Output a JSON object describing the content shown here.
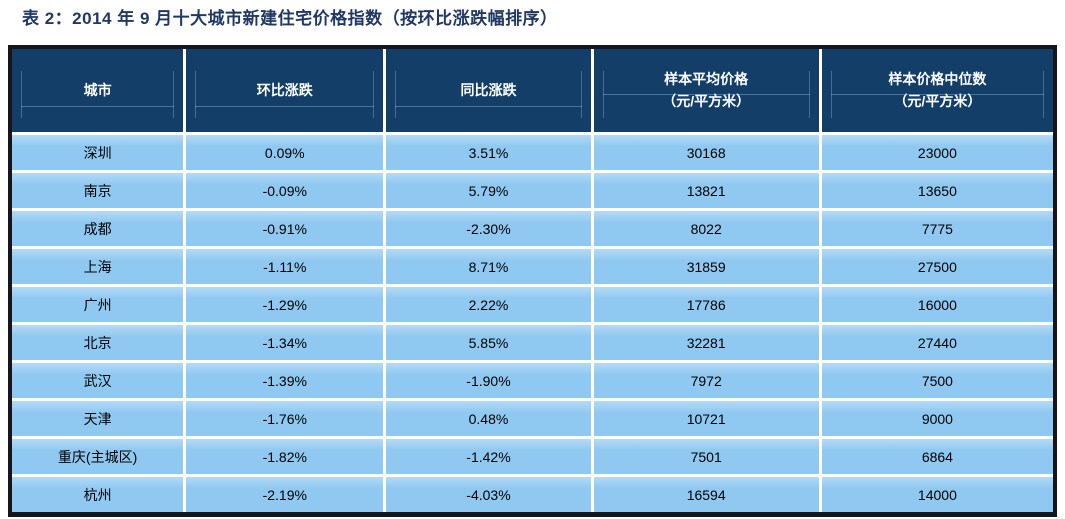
{
  "title": "表 2：2014 年 9 月十大城市新建住宅价格指数（按环比涨跌幅排序）",
  "header": {
    "city": "城市",
    "mom": "环比涨跌",
    "yoy": "同比涨跌",
    "avg_line1": "样本平均价格",
    "avg_line2": "（元/平方米）",
    "median_line1": "样本价格中位数",
    "median_line2": "（元/平方米）"
  },
  "chart_data": {
    "type": "table",
    "title": "表 2：2014 年 9 月十大城市新建住宅价格指数（按环比涨跌幅排序）",
    "columns": [
      "城市",
      "环比涨跌",
      "同比涨跌",
      "样本平均价格（元/平方米）",
      "样本价格中位数（元/平方米）"
    ],
    "rows": [
      [
        "深圳",
        "0.09%",
        "3.51%",
        "30168",
        "23000"
      ],
      [
        "南京",
        "-0.09%",
        "5.79%",
        "13821",
        "13650"
      ],
      [
        "成都",
        "-0.91%",
        "-2.30%",
        "8022",
        "7775"
      ],
      [
        "上海",
        "-1.11%",
        "8.71%",
        "31859",
        "27500"
      ],
      [
        "广州",
        "-1.29%",
        "2.22%",
        "17786",
        "16000"
      ],
      [
        "北京",
        "-1.34%",
        "5.85%",
        "32281",
        "27440"
      ],
      [
        "武汉",
        "-1.39%",
        "-1.90%",
        "7972",
        "7500"
      ],
      [
        "天津",
        "-1.76%",
        "0.48%",
        "10721",
        "9000"
      ],
      [
        "重庆(主城区)",
        "-1.82%",
        "-1.42%",
        "7501",
        "6864"
      ],
      [
        "杭州",
        "-2.19%",
        "-4.03%",
        "16594",
        "14000"
      ]
    ]
  },
  "colors": {
    "title_text": "#1F3864",
    "header_bg": "#123E68",
    "header_text": "#FFFFFF",
    "row_bg": "#8FC8F0",
    "row_bg_light": "#B3DAF7",
    "grid_line": "#FFFFFF",
    "outer_border": "#15151D",
    "cell_text": "#000000"
  }
}
